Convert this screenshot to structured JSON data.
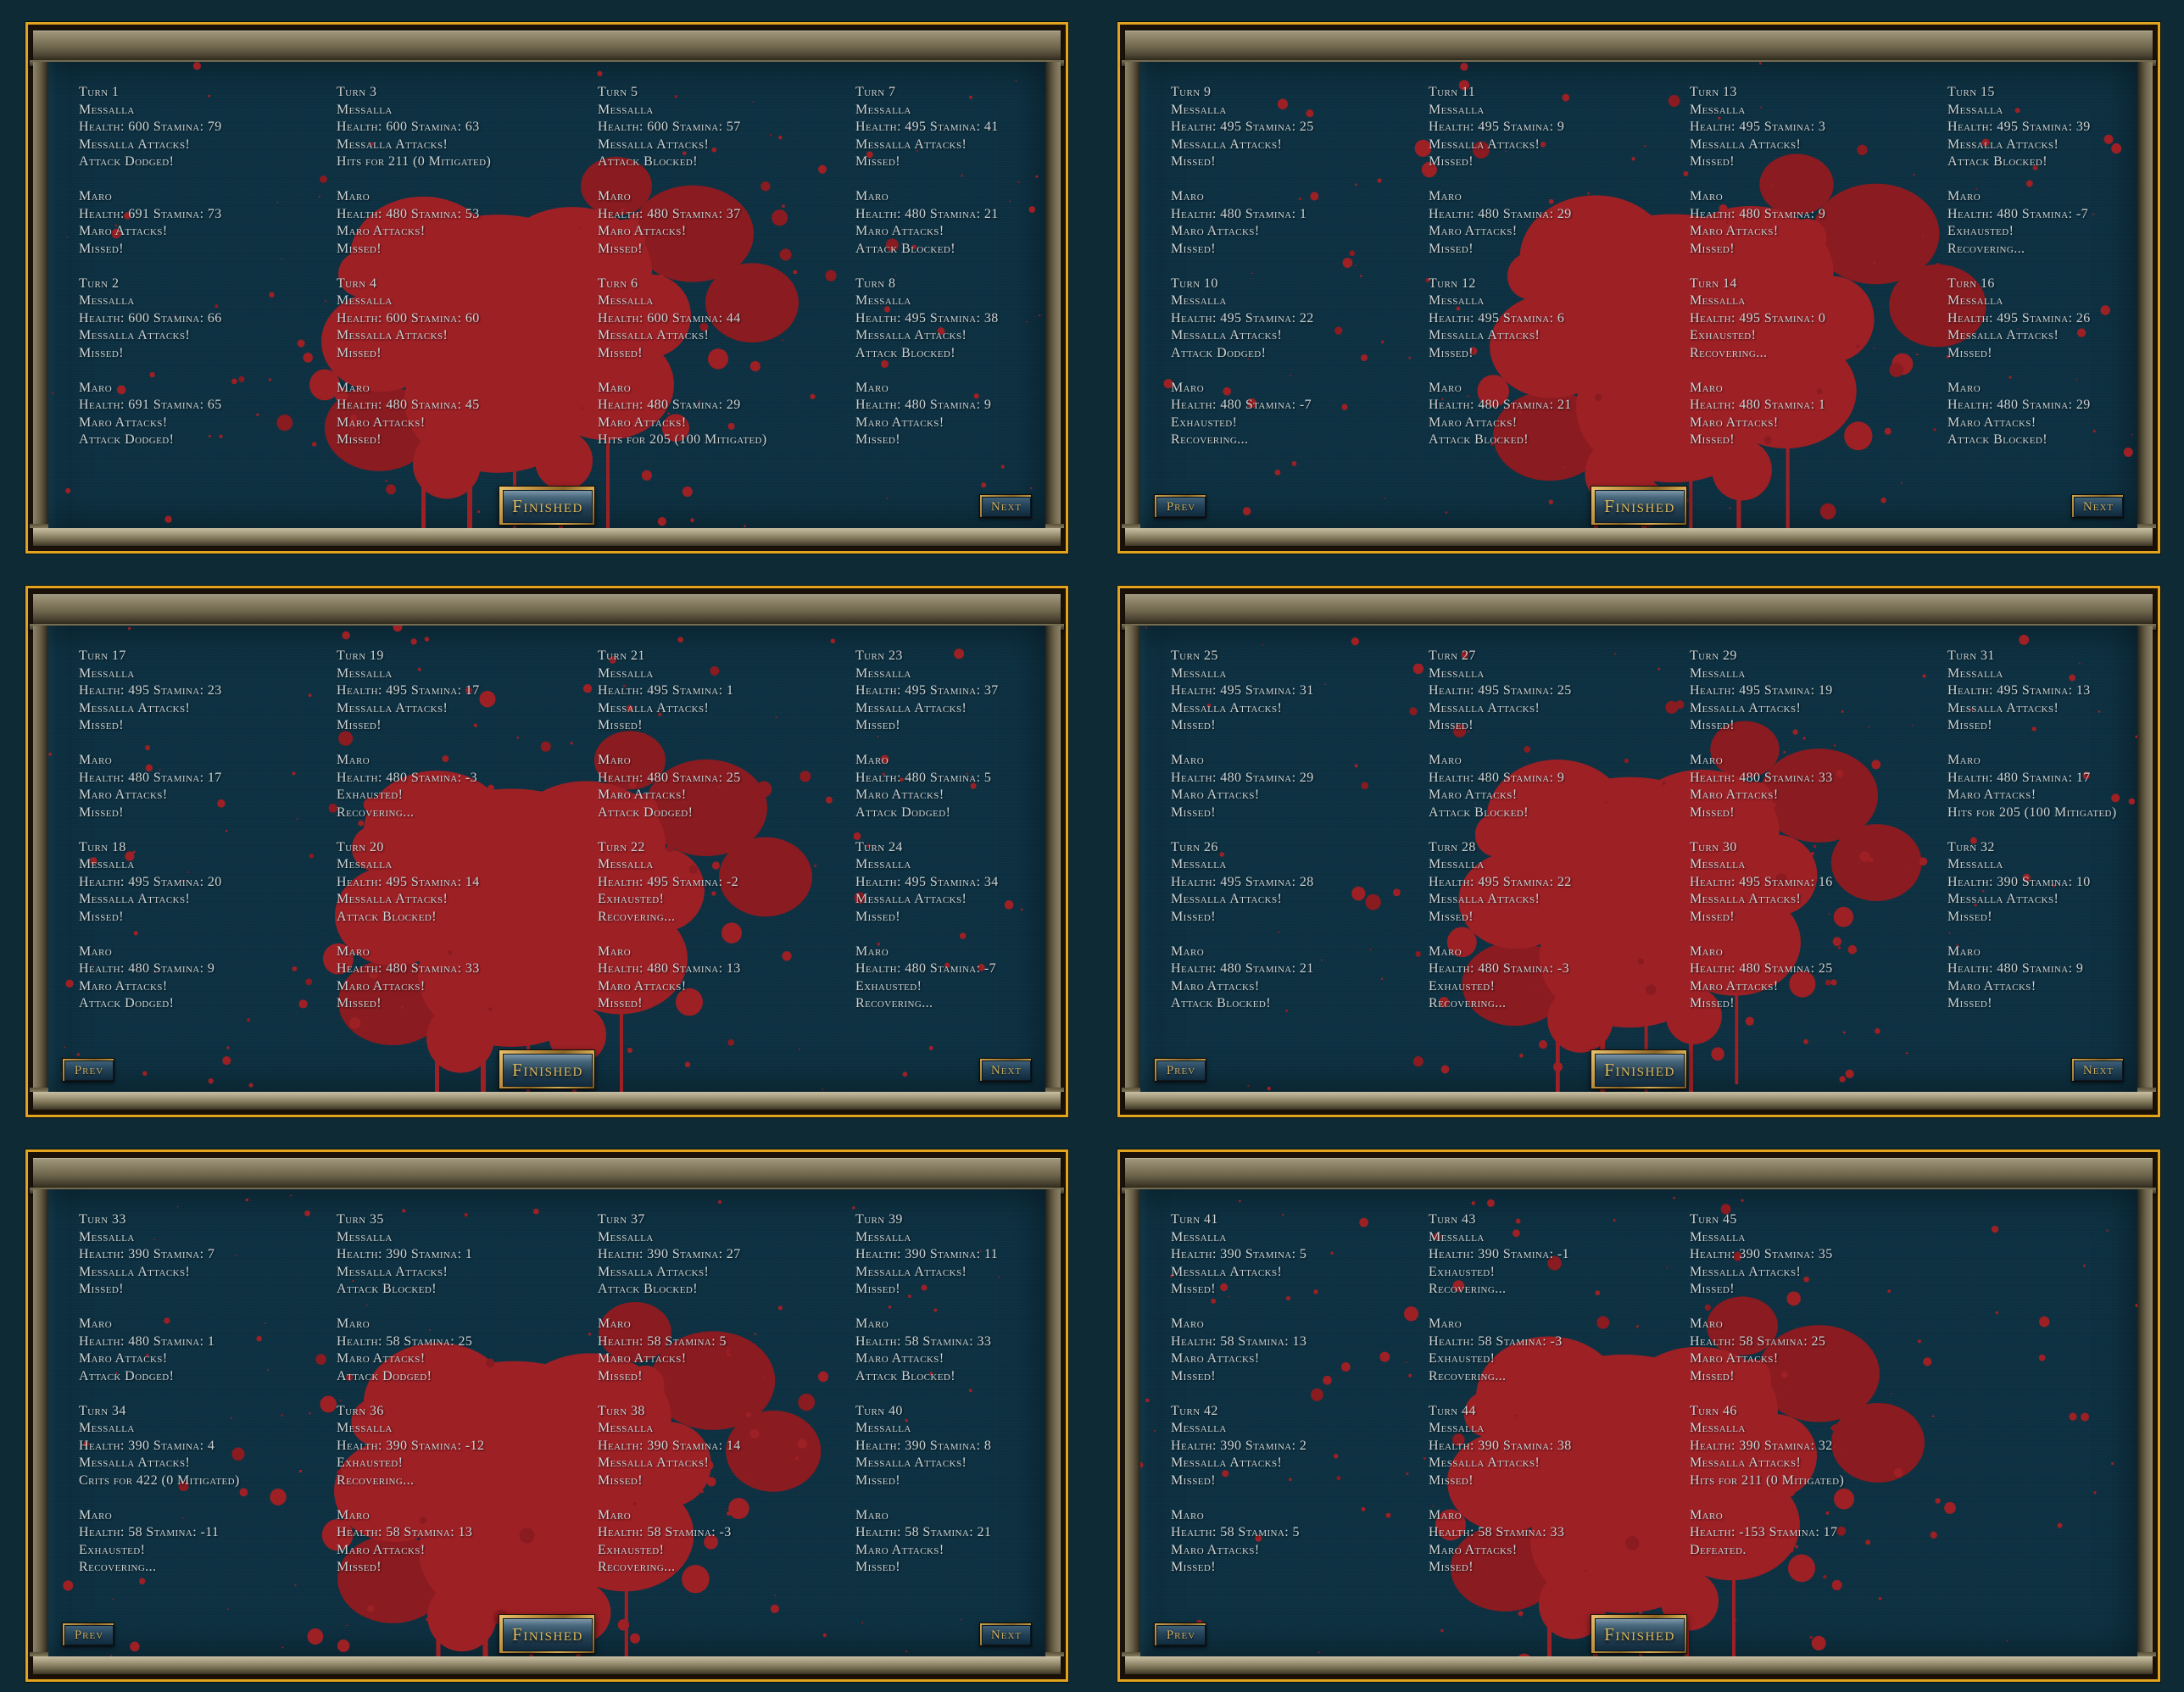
{
  "colors": {
    "gold_border": "#e2a41f",
    "content_bg": "#0d3142",
    "blood": "#9d2025",
    "blood_dark": "#8a1b20",
    "text": "#ccd2d4",
    "button_gold_text": "#dcb85a"
  },
  "buttons": {
    "finished": "Finished",
    "prev": "Prev",
    "next": "Next"
  },
  "panels": [
    {
      "name": "turns-1-8",
      "has_prev": false,
      "has_next": true,
      "columns": [
        [
          {
            "title": "Turn 1",
            "attacker": [
              "Messalla",
              "Health: 600 Stamina: 79",
              "Messalla Attacks!",
              "Attack Dodged!"
            ],
            "defender": [
              "Maro",
              "Health: 691 Stamina: 73",
              "Maro Attacks!",
              "Missed!"
            ]
          },
          {
            "title": "Turn 2",
            "attacker": [
              "Messalla",
              "Health: 600 Stamina: 66",
              "Messalla Attacks!",
              "Missed!"
            ],
            "defender": [
              "Maro",
              "Health: 691 Stamina: 65",
              "Maro Attacks!",
              "Attack Dodged!"
            ]
          }
        ],
        [
          {
            "title": "Turn 3",
            "attacker": [
              "Messalla",
              "Health: 600 Stamina: 63",
              "Messalla Attacks!",
              "Hits for 211 (0 Mitigated)"
            ],
            "defender": [
              "Maro",
              "Health: 480 Stamina: 53",
              "Maro Attacks!",
              "Missed!"
            ]
          },
          {
            "title": "Turn 4",
            "attacker": [
              "Messalla",
              "Health: 600 Stamina: 60",
              "Messalla Attacks!",
              "Missed!"
            ],
            "defender": [
              "Maro",
              "Health: 480 Stamina: 45",
              "Maro Attacks!",
              "Missed!"
            ]
          }
        ],
        [
          {
            "title": "Turn 5",
            "attacker": [
              "Messalla",
              "Health: 600 Stamina: 57",
              "Messalla Attacks!",
              "Attack Blocked!"
            ],
            "defender": [
              "Maro",
              "Health: 480 Stamina: 37",
              "Maro Attacks!",
              "Missed!"
            ]
          },
          {
            "title": "Turn 6",
            "attacker": [
              "Messalla",
              "Health: 600 Stamina: 44",
              "Messalla Attacks!",
              "Missed!"
            ],
            "defender": [
              "Maro",
              "Health: 480 Stamina: 29",
              "Maro Attacks!",
              "Hits for 205 (100 Mitigated)"
            ]
          }
        ],
        [
          {
            "title": "Turn 7",
            "attacker": [
              "Messalla",
              "Health: 495 Stamina: 41",
              "Messalla Attacks!",
              "Missed!"
            ],
            "defender": [
              "Maro",
              "Health: 480 Stamina: 21",
              "Maro Attacks!",
              "Attack Blocked!"
            ]
          },
          {
            "title": "Turn 8",
            "attacker": [
              "Messalla",
              "Health: 495 Stamina: 38",
              "Messalla Attacks!",
              "Attack Blocked!"
            ],
            "defender": [
              "Maro",
              "Health: 480 Stamina: 9",
              "Maro Attacks!",
              "Missed!"
            ]
          }
        ]
      ]
    },
    {
      "name": "turns-9-16",
      "has_prev": true,
      "has_next": true,
      "columns": [
        [
          {
            "title": "Turn 9",
            "attacker": [
              "Messalla",
              "Health: 495 Stamina: 25",
              "Messalla Attacks!",
              "Missed!"
            ],
            "defender": [
              "Maro",
              "Health: 480 Stamina: 1",
              "Maro Attacks!",
              "Missed!"
            ]
          },
          {
            "title": "Turn 10",
            "attacker": [
              "Messalla",
              "Health: 495 Stamina: 22",
              "Messalla Attacks!",
              "Attack Dodged!"
            ],
            "defender": [
              "Maro",
              "Health: 480 Stamina: -7",
              "Exhausted!",
              "Recovering..."
            ]
          }
        ],
        [
          {
            "title": "Turn 11",
            "attacker": [
              "Messalla",
              "Health: 495 Stamina: 9",
              "Messalla Attacks!",
              "Missed!"
            ],
            "defender": [
              "Maro",
              "Health: 480 Stamina: 29",
              "Maro Attacks!",
              "Missed!"
            ]
          },
          {
            "title": "Turn 12",
            "attacker": [
              "Messalla",
              "Health: 495 Stamina: 6",
              "Messalla Attacks!",
              "Missed!"
            ],
            "defender": [
              "Maro",
              "Health: 480 Stamina: 21",
              "Maro Attacks!",
              "Attack Blocked!"
            ]
          }
        ],
        [
          {
            "title": "Turn 13",
            "attacker": [
              "Messalla",
              "Health: 495 Stamina: 3",
              "Messalla Attacks!",
              "Missed!"
            ],
            "defender": [
              "Maro",
              "Health: 480 Stamina: 9",
              "Maro Attacks!",
              "Missed!"
            ]
          },
          {
            "title": "Turn 14",
            "attacker": [
              "Messalla",
              "Health: 495 Stamina: 0",
              "Exhausted!",
              "Recovering..."
            ],
            "defender": [
              "Maro",
              "Health: 480 Stamina: 1",
              "Maro Attacks!",
              "Missed!"
            ]
          }
        ],
        [
          {
            "title": "Turn 15",
            "attacker": [
              "Messalla",
              "Health: 495 Stamina: 39",
              "Messalla Attacks!",
              "Attack Blocked!"
            ],
            "defender": [
              "Maro",
              "Health: 480 Stamina: -7",
              "Exhausted!",
              "Recovering..."
            ]
          },
          {
            "title": "Turn 16",
            "attacker": [
              "Messalla",
              "Health: 495 Stamina: 26",
              "Messalla Attacks!",
              "Missed!"
            ],
            "defender": [
              "Maro",
              "Health: 480 Stamina: 29",
              "Maro Attacks!",
              "Attack Blocked!"
            ]
          }
        ]
      ]
    },
    {
      "name": "turns-17-24",
      "has_prev": true,
      "has_next": true,
      "columns": [
        [
          {
            "title": "Turn 17",
            "attacker": [
              "Messalla",
              "Health: 495 Stamina: 23",
              "Messalla Attacks!",
              "Missed!"
            ],
            "defender": [
              "Maro",
              "Health: 480 Stamina: 17",
              "Maro Attacks!",
              "Missed!"
            ]
          },
          {
            "title": "Turn 18",
            "attacker": [
              "Messalla",
              "Health: 495 Stamina: 20",
              "Messalla Attacks!",
              "Missed!"
            ],
            "defender": [
              "Maro",
              "Health: 480 Stamina: 9",
              "Maro Attacks!",
              "Attack Dodged!"
            ]
          }
        ],
        [
          {
            "title": "Turn 19",
            "attacker": [
              "Messalla",
              "Health: 495 Stamina: 17",
              "Messalla Attacks!",
              "Missed!"
            ],
            "defender": [
              "Maro",
              "Health: 480 Stamina: -3",
              "Exhausted!",
              "Recovering..."
            ]
          },
          {
            "title": "Turn 20",
            "attacker": [
              "Messalla",
              "Health: 495 Stamina: 14",
              "Messalla Attacks!",
              "Attack Blocked!"
            ],
            "defender": [
              "Maro",
              "Health: 480 Stamina: 33",
              "Maro Attacks!",
              "Missed!"
            ]
          }
        ],
        [
          {
            "title": "Turn 21",
            "attacker": [
              "Messalla",
              "Health: 495 Stamina: 1",
              "Messalla Attacks!",
              "Missed!"
            ],
            "defender": [
              "Maro",
              "Health: 480 Stamina: 25",
              "Maro Attacks!",
              "Attack Dodged!"
            ]
          },
          {
            "title": "Turn 22",
            "attacker": [
              "Messalla",
              "Health: 495 Stamina: -2",
              "Exhausted!",
              "Recovering..."
            ],
            "defender": [
              "Maro",
              "Health: 480 Stamina: 13",
              "Maro Attacks!",
              "Missed!"
            ]
          }
        ],
        [
          {
            "title": "Turn 23",
            "attacker": [
              "Messalla",
              "Health: 495 Stamina: 37",
              "Messalla Attacks!",
              "Missed!"
            ],
            "defender": [
              "Maro",
              "Health: 480 Stamina: 5",
              "Maro Attacks!",
              "Attack Dodged!"
            ]
          },
          {
            "title": "Turn 24",
            "attacker": [
              "Messalla",
              "Health: 495 Stamina: 34",
              "Messalla Attacks!",
              "Missed!"
            ],
            "defender": [
              "Maro",
              "Health: 480 Stamina: -7",
              "Exhausted!",
              "Recovering..."
            ]
          }
        ]
      ]
    },
    {
      "name": "turns-25-32",
      "has_prev": true,
      "has_next": true,
      "columns": [
        [
          {
            "title": "Turn 25",
            "attacker": [
              "Messalla",
              "Health: 495 Stamina: 31",
              "Messalla Attacks!",
              "Missed!"
            ],
            "defender": [
              "Maro",
              "Health: 480 Stamina: 29",
              "Maro Attacks!",
              "Missed!"
            ]
          },
          {
            "title": "Turn 26",
            "attacker": [
              "Messalla",
              "Health: 495 Stamina: 28",
              "Messalla Attacks!",
              "Missed!"
            ],
            "defender": [
              "Maro",
              "Health: 480 Stamina: 21",
              "Maro Attacks!",
              "Attack Blocked!"
            ]
          }
        ],
        [
          {
            "title": "Turn 27",
            "attacker": [
              "Messalla",
              "Health: 495 Stamina: 25",
              "Messalla Attacks!",
              "Missed!"
            ],
            "defender": [
              "Maro",
              "Health: 480 Stamina: 9",
              "Maro Attacks!",
              "Attack Blocked!"
            ]
          },
          {
            "title": "Turn 28",
            "attacker": [
              "Messalla",
              "Health: 495 Stamina: 22",
              "Messalla Attacks!",
              "Missed!"
            ],
            "defender": [
              "Maro",
              "Health: 480 Stamina: -3",
              "Exhausted!",
              "Recovering..."
            ]
          }
        ],
        [
          {
            "title": "Turn 29",
            "attacker": [
              "Messalla",
              "Health: 495 Stamina: 19",
              "Messalla Attacks!",
              "Missed!"
            ],
            "defender": [
              "Maro",
              "Health: 480 Stamina: 33",
              "Maro Attacks!",
              "Missed!"
            ]
          },
          {
            "title": "Turn 30",
            "attacker": [
              "Messalla",
              "Health: 495 Stamina: 16",
              "Messalla Attacks!",
              "Missed!"
            ],
            "defender": [
              "Maro",
              "Health: 480 Stamina: 25",
              "Maro Attacks!",
              "Missed!"
            ]
          }
        ],
        [
          {
            "title": "Turn 31",
            "attacker": [
              "Messalla",
              "Health: 495 Stamina: 13",
              "Messalla Attacks!",
              "Missed!"
            ],
            "defender": [
              "Maro",
              "Health: 480 Stamina: 17",
              "Maro Attacks!",
              "Hits for 205 (100 Mitigated)"
            ]
          },
          {
            "title": "Turn 32",
            "attacker": [
              "Messalla",
              "Health: 390 Stamina: 10",
              "Messalla Attacks!",
              "Missed!"
            ],
            "defender": [
              "Maro",
              "Health: 480 Stamina: 9",
              "Maro Attacks!",
              "Missed!"
            ]
          }
        ]
      ]
    },
    {
      "name": "turns-33-40",
      "has_prev": true,
      "has_next": true,
      "columns": [
        [
          {
            "title": "Turn 33",
            "attacker": [
              "Messalla",
              "Health: 390 Stamina: 7",
              "Messalla Attacks!",
              "Missed!"
            ],
            "defender": [
              "Maro",
              "Health: 480 Stamina: 1",
              "Maro Attacks!",
              "Attack Dodged!"
            ]
          },
          {
            "title": "Turn 34",
            "attacker": [
              "Messalla",
              "Health: 390 Stamina: 4",
              "Messalla Attacks!",
              "Crits for 422 (0 Mitigated)"
            ],
            "defender": [
              "Maro",
              "Health: 58 Stamina: -11",
              "Exhausted!",
              "Recovering..."
            ]
          }
        ],
        [
          {
            "title": "Turn 35",
            "attacker": [
              "Messalla",
              "Health: 390 Stamina: 1",
              "Messalla Attacks!",
              "Attack Blocked!"
            ],
            "defender": [
              "Maro",
              "Health: 58 Stamina: 25",
              "Maro Attacks!",
              "Attack Dodged!"
            ]
          },
          {
            "title": "Turn 36",
            "attacker": [
              "Messalla",
              "Health: 390 Stamina: -12",
              "Exhausted!",
              "Recovering..."
            ],
            "defender": [
              "Maro",
              "Health: 58 Stamina: 13",
              "Maro Attacks!",
              "Missed!"
            ]
          }
        ],
        [
          {
            "title": "Turn 37",
            "attacker": [
              "Messalla",
              "Health: 390 Stamina: 27",
              "Messalla Attacks!",
              "Attack Blocked!"
            ],
            "defender": [
              "Maro",
              "Health: 58 Stamina: 5",
              "Maro Attacks!",
              "Missed!"
            ]
          },
          {
            "title": "Turn 38",
            "attacker": [
              "Messalla",
              "Health: 390 Stamina: 14",
              "Messalla Attacks!",
              "Missed!"
            ],
            "defender": [
              "Maro",
              "Health: 58 Stamina: -3",
              "Exhausted!",
              "Recovering..."
            ]
          }
        ],
        [
          {
            "title": "Turn 39",
            "attacker": [
              "Messalla",
              "Health: 390 Stamina: 11",
              "Messalla Attacks!",
              "Missed!"
            ],
            "defender": [
              "Maro",
              "Health: 58 Stamina: 33",
              "Maro Attacks!",
              "Attack Blocked!"
            ]
          },
          {
            "title": "Turn 40",
            "attacker": [
              "Messalla",
              "Health: 390 Stamina: 8",
              "Messalla Attacks!",
              "Missed!"
            ],
            "defender": [
              "Maro",
              "Health: 58 Stamina: 21",
              "Maro Attacks!",
              "Missed!"
            ]
          }
        ]
      ]
    },
    {
      "name": "turns-41-46",
      "has_prev": true,
      "has_next": false,
      "columns": [
        [
          {
            "title": "Turn 41",
            "attacker": [
              "Messalla",
              "Health: 390 Stamina: 5",
              "Messalla Attacks!",
              "Missed!"
            ],
            "defender": [
              "Maro",
              "Health: 58 Stamina: 13",
              "Maro Attacks!",
              "Missed!"
            ]
          },
          {
            "title": "Turn 42",
            "attacker": [
              "Messalla",
              "Health: 390 Stamina: 2",
              "Messalla Attacks!",
              "Missed!"
            ],
            "defender": [
              "Maro",
              "Health: 58 Stamina: 5",
              "Maro Attacks!",
              "Missed!"
            ]
          }
        ],
        [
          {
            "title": "Turn 43",
            "attacker": [
              "Messalla",
              "Health: 390 Stamina: -1",
              "Exhausted!",
              "Recovering..."
            ],
            "defender": [
              "Maro",
              "Health: 58 Stamina: -3",
              "Exhausted!",
              "Recovering..."
            ]
          },
          {
            "title": "Turn 44",
            "attacker": [
              "Messalla",
              "Health: 390 Stamina: 38",
              "Messalla Attacks!",
              "Missed!"
            ],
            "defender": [
              "Maro",
              "Health: 58 Stamina: 33",
              "Maro Attacks!",
              "Missed!"
            ]
          }
        ],
        [
          {
            "title": "Turn 45",
            "attacker": [
              "Messalla",
              "Health: 390 Stamina: 35",
              "Messalla Attacks!",
              "Missed!"
            ],
            "defender": [
              "Maro",
              "Health: 58 Stamina: 25",
              "Maro Attacks!",
              "Missed!"
            ]
          },
          {
            "title": "Turn 46",
            "attacker": [
              "Messalla",
              "Health: 390 Stamina: 32",
              "Messalla Attacks!",
              "Hits for 211 (0 Mitigated)"
            ],
            "defender": [
              "Maro",
              "Health: -153 Stamina: 17",
              "Defeated."
            ]
          }
        ],
        []
      ]
    }
  ]
}
